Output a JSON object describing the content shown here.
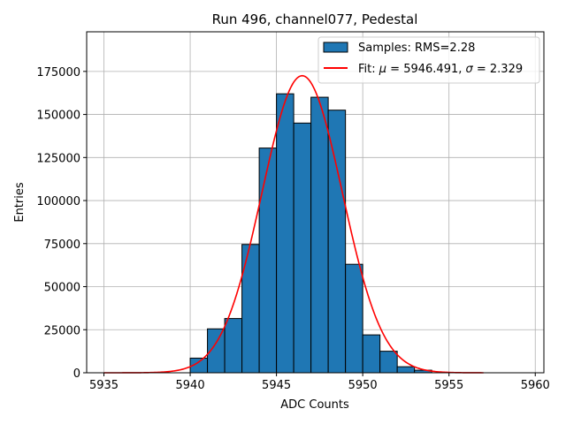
{
  "chart_data": {
    "type": "bar",
    "title": "Run 496, channel077, Pedestal",
    "xlabel": "ADC Counts",
    "ylabel": "Entries",
    "xlim": [
      5934,
      5960.5
    ],
    "ylim": [
      0,
      198000
    ],
    "xticks": [
      5935,
      5940,
      5945,
      5950,
      5955,
      5960
    ],
    "yticks": [
      0,
      25000,
      50000,
      75000,
      100000,
      125000,
      150000,
      175000
    ],
    "grid": true,
    "legend_position": "top-right",
    "bar_color": "#1f77b4",
    "fit_color": "#ff0000",
    "histogram": {
      "name": "Samples: RMS=2.28",
      "bin_width": 1,
      "bin_starts": [
        5940,
        5941,
        5942,
        5943,
        5944,
        5945,
        5946,
        5947,
        5948,
        5949,
        5950,
        5951,
        5952,
        5953
      ],
      "values": [
        8500,
        25500,
        31500,
        74500,
        130500,
        162000,
        145000,
        160000,
        152500,
        63000,
        22000,
        12500,
        3500,
        1500
      ]
    },
    "fit": {
      "name_prefix": "Fit: ",
      "mu_symbol": "μ",
      "mu_value": " = 5946.491, ",
      "sigma_symbol": "σ",
      "sigma_value": " = 2.329",
      "mu": 5946.491,
      "sigma": 2.329,
      "amplitude": 172500,
      "x_range": [
        5935,
        5957
      ]
    }
  }
}
